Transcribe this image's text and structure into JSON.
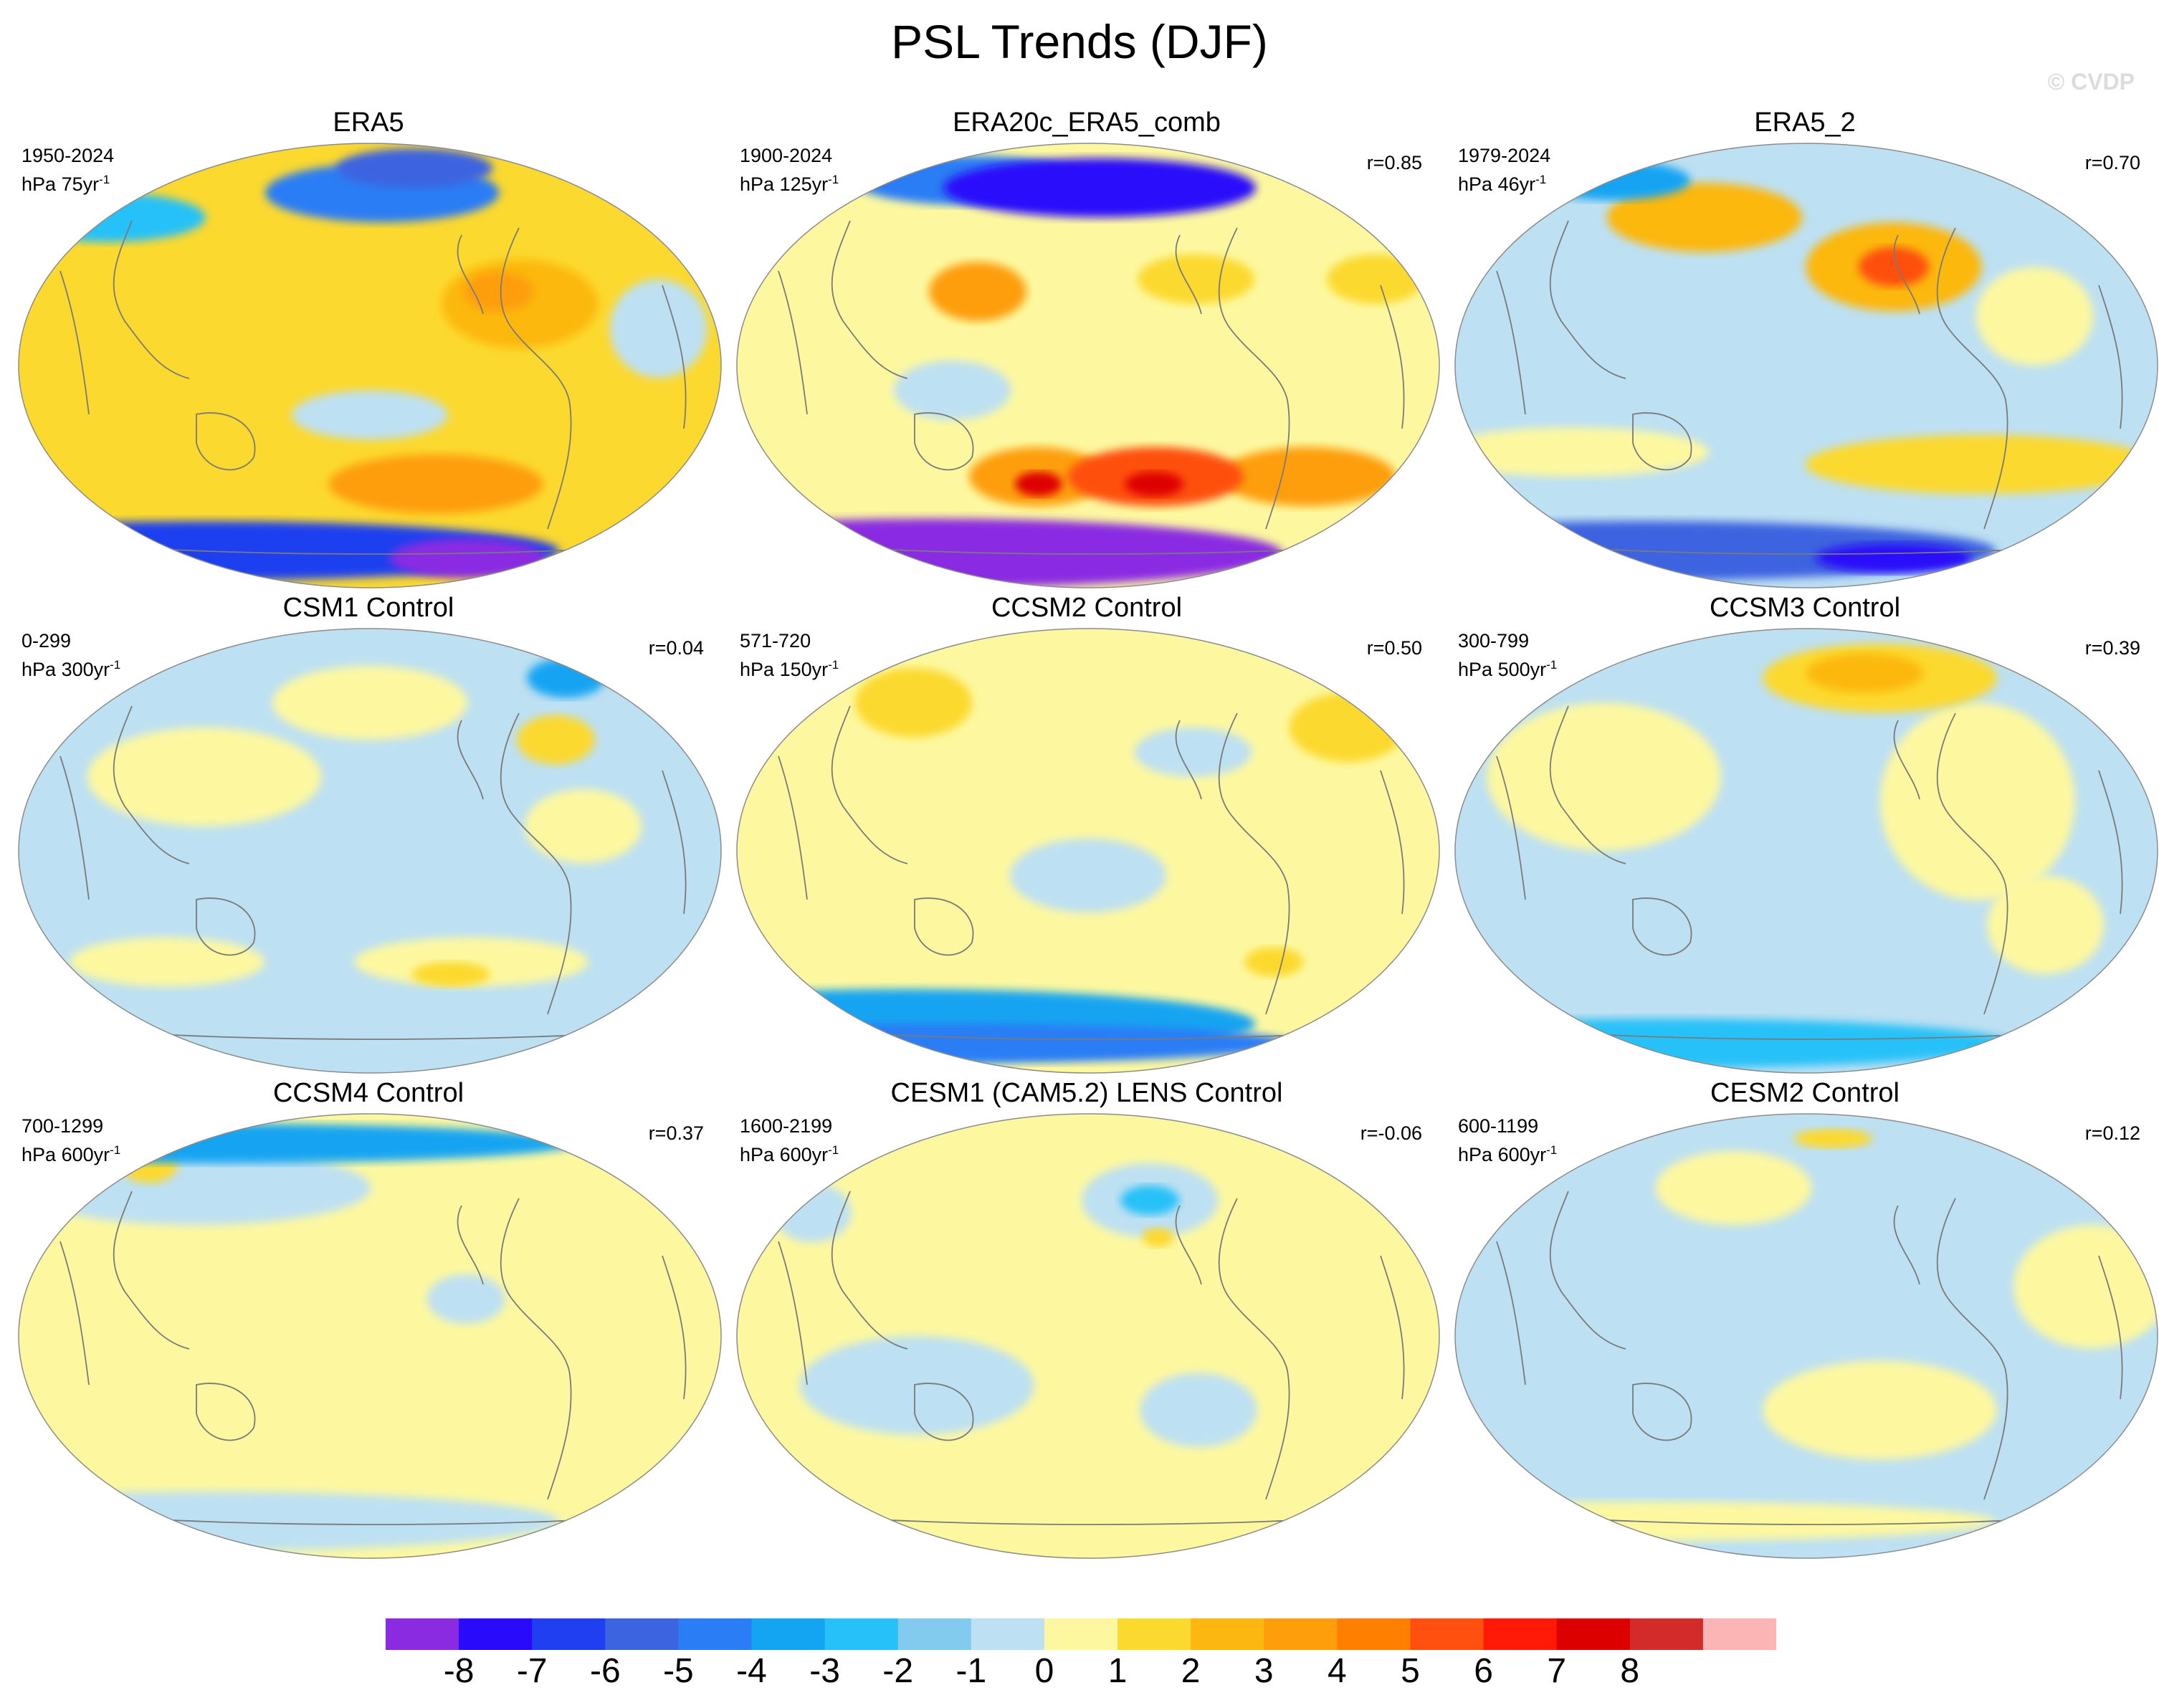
{
  "title": "PSL Trends (DJF)",
  "watermark": "© CVDP",
  "units_prefix": "hPa",
  "panels": [
    {
      "name": "ERA5",
      "period": "1950-2024",
      "per": "75yr",
      "exp": "-1",
      "corr": "",
      "base": 2,
      "blobs": [
        {
          "lon": -170,
          "lat": -48,
          "rx": 55,
          "ry": 12,
          "lvl": 4
        },
        {
          "lon": 20,
          "lat": -50,
          "rx": 30,
          "ry": 10,
          "lvl": 2
        },
        {
          "lon": -60,
          "lat": -45,
          "rx": 40,
          "ry": 12,
          "lvl": 2
        },
        {
          "lon": -130,
          "lat": 25,
          "rx": 40,
          "ry": 18,
          "lvl": 3
        },
        {
          "lon": -140,
          "lat": 30,
          "rx": 18,
          "ry": 8,
          "lvl": 4
        },
        {
          "lon": 80,
          "lat": 35,
          "rx": 50,
          "ry": 18,
          "lvl": 2
        },
        {
          "lon": 160,
          "lat": 70,
          "rx": 60,
          "ry": 12,
          "lvl": -4
        },
        {
          "lon": -160,
          "lat": 80,
          "rx": 40,
          "ry": 8,
          "lvl": -5
        },
        {
          "lon": -60,
          "lat": 15,
          "rx": 25,
          "ry": 20,
          "lvl": -1
        },
        {
          "lon": 150,
          "lat": -20,
          "rx": 40,
          "ry": 10,
          "lvl": -1
        },
        {
          "lon": 0,
          "lat": -75,
          "rx": 180,
          "ry": 12,
          "lvl": -6
        },
        {
          "lon": -110,
          "lat": -78,
          "rx": 40,
          "ry": 8,
          "lvl": -8
        },
        {
          "lon": -30,
          "lat": 60,
          "rx": 50,
          "ry": 10,
          "lvl": -2
        }
      ]
    },
    {
      "name": "ERA20c_ERA5_comb",
      "period": "1900-2024",
      "per": "125yr",
      "exp": "-1",
      "corr": "r=0.85",
      "base": 1,
      "blobs": [
        {
          "lon": -170,
          "lat": -45,
          "rx": 45,
          "ry": 12,
          "lvl": 5
        },
        {
          "lon": -80,
          "lat": -45,
          "rx": 45,
          "ry": 12,
          "lvl": 4
        },
        {
          "lon": 120,
          "lat": -45,
          "rx": 35,
          "ry": 12,
          "lvl": 4
        },
        {
          "lon": -170,
          "lat": -48,
          "rx": 15,
          "ry": 5,
          "lvl": 7
        },
        {
          "lon": 120,
          "lat": -48,
          "rx": 12,
          "ry": 5,
          "lvl": 7
        },
        {
          "lon": -150,
          "lat": 35,
          "rx": 30,
          "ry": 10,
          "lvl": 2
        },
        {
          "lon": -50,
          "lat": 35,
          "rx": 25,
          "ry": 10,
          "lvl": 2
        },
        {
          "lon": 160,
          "lat": 72,
          "rx": 80,
          "ry": 12,
          "lvl": -7
        },
        {
          "lon": 40,
          "lat": 75,
          "rx": 60,
          "ry": 10,
          "lvl": -4
        },
        {
          "lon": 90,
          "lat": 30,
          "rx": 25,
          "ry": 12,
          "lvl": 4
        },
        {
          "lon": 0,
          "lat": -76,
          "rx": 180,
          "ry": 14,
          "lvl": -8
        },
        {
          "lon": 80,
          "lat": -10,
          "rx": 30,
          "ry": 12,
          "lvl": -1
        }
      ]
    },
    {
      "name": "ERA5_2",
      "period": "1979-2024",
      "per": "46yr",
      "exp": "-1",
      "corr": "r=0.70",
      "base": -1,
      "blobs": [
        {
          "lon": -160,
          "lat": 40,
          "rx": 45,
          "ry": 18,
          "lvl": 3
        },
        {
          "lon": -160,
          "lat": 40,
          "rx": 18,
          "ry": 8,
          "lvl": 5
        },
        {
          "lon": 80,
          "lat": 60,
          "rx": 50,
          "ry": 14,
          "lvl": 3
        },
        {
          "lon": -90,
          "lat": 20,
          "rx": 30,
          "ry": 20,
          "lvl": 1
        },
        {
          "lon": -110,
          "lat": -40,
          "rx": 90,
          "ry": 12,
          "lvl": 2
        },
        {
          "lon": 20,
          "lat": -35,
          "rx": 70,
          "ry": 10,
          "lvl": 1
        },
        {
          "lon": 0,
          "lat": -75,
          "rx": 180,
          "ry": 12,
          "lvl": -5
        },
        {
          "lon": -30,
          "lat": 75,
          "rx": 40,
          "ry": 8,
          "lvl": -3
        },
        {
          "lon": -120,
          "lat": -78,
          "rx": 40,
          "ry": 6,
          "lvl": -7
        }
      ]
    },
    {
      "name": "CSM1 Control",
      "period": "0-299",
      "per": "300yr",
      "exp": "-1",
      "corr": "r=0.04",
      "base": -1,
      "blobs": [
        {
          "lon": 150,
          "lat": 60,
          "rx": 50,
          "ry": 15,
          "lvl": 1
        },
        {
          "lon": -100,
          "lat": 45,
          "rx": 20,
          "ry": 10,
          "lvl": 2
        },
        {
          "lon": -50,
          "lat": 70,
          "rx": 20,
          "ry": 8,
          "lvl": -3
        },
        {
          "lon": -150,
          "lat": -45,
          "rx": 60,
          "ry": 10,
          "lvl": 1
        },
        {
          "lon": -160,
          "lat": -50,
          "rx": 20,
          "ry": 5,
          "lvl": 2
        },
        {
          "lon": 30,
          "lat": -45,
          "rx": 50,
          "ry": 10,
          "lvl": 1
        },
        {
          "lon": 60,
          "lat": 30,
          "rx": 60,
          "ry": 20,
          "lvl": 1
        },
        {
          "lon": -100,
          "lat": 10,
          "rx": 30,
          "ry": 15,
          "lvl": 1
        }
      ]
    },
    {
      "name": "CCSM2 Control",
      "period": "571-720",
      "per": "150yr",
      "exp": "-1",
      "corr": "r=0.50",
      "base": 1,
      "blobs": [
        {
          "lon": -50,
          "lat": 50,
          "rx": 30,
          "ry": 14,
          "lvl": 2
        },
        {
          "lon": 30,
          "lat": 60,
          "rx": 30,
          "ry": 14,
          "lvl": 2
        },
        {
          "lon": -100,
          "lat": -45,
          "rx": 15,
          "ry": 6,
          "lvl": 2
        },
        {
          "lon": 0,
          "lat": -70,
          "rx": 180,
          "ry": 14,
          "lvl": -3
        },
        {
          "lon": 0,
          "lat": -78,
          "rx": 180,
          "ry": 8,
          "lvl": -4
        },
        {
          "lon": -150,
          "lat": 40,
          "rx": 30,
          "ry": 10,
          "lvl": -1
        },
        {
          "lon": 150,
          "lat": -10,
          "rx": 40,
          "ry": 15,
          "lvl": -1
        }
      ]
    },
    {
      "name": "CCSM3 Control",
      "period": "300-799",
      "per": "500yr",
      "exp": "-1",
      "corr": "r=0.39",
      "base": -1,
      "blobs": [
        {
          "lon": -150,
          "lat": 70,
          "rx": 60,
          "ry": 14,
          "lvl": 2
        },
        {
          "lon": -160,
          "lat": 72,
          "rx": 30,
          "ry": 8,
          "lvl": 3
        },
        {
          "lon": -120,
          "lat": 20,
          "rx": 50,
          "ry": 40,
          "lvl": 1
        },
        {
          "lon": 40,
          "lat": 30,
          "rx": 60,
          "ry": 30,
          "lvl": 1
        },
        {
          "lon": 0,
          "lat": -78,
          "rx": 180,
          "ry": 10,
          "lvl": -2
        },
        {
          "lon": -80,
          "lat": -30,
          "rx": 30,
          "ry": 20,
          "lvl": 1
        }
      ]
    },
    {
      "name": "CCSM4 Control",
      "period": "700-1299",
      "per": "600yr",
      "exp": "-1",
      "corr": "r=0.37",
      "base": 1,
      "blobs": [
        {
          "lon": 0,
          "lat": 78,
          "rx": 180,
          "ry": 8,
          "lvl": -3
        },
        {
          "lon": 30,
          "lat": 60,
          "rx": 90,
          "ry": 15,
          "lvl": -1
        },
        {
          "lon": -160,
          "lat": 15,
          "rx": 20,
          "ry": 10,
          "lvl": -1
        },
        {
          "lon": 0,
          "lat": -75,
          "rx": 180,
          "ry": 12,
          "lvl": -1
        },
        {
          "lon": -30,
          "lat": 70,
          "rx": 15,
          "ry": 8,
          "lvl": 2
        }
      ]
    },
    {
      "name": "CESM1 (CAM5.2) LENS Control",
      "period": "1600-2199",
      "per": "600yr",
      "exp": "-1",
      "corr": "r=-0.06",
      "base": 1,
      "blobs": [
        {
          "lon": -170,
          "lat": 55,
          "rx": 35,
          "ry": 15,
          "lvl": -1
        },
        {
          "lon": -170,
          "lat": 55,
          "rx": 15,
          "ry": 6,
          "lvl": -2
        },
        {
          "lon": -20,
          "lat": 50,
          "rx": 20,
          "ry": 12,
          "lvl": -1
        },
        {
          "lon": 60,
          "lat": -20,
          "rx": 60,
          "ry": 20,
          "lvl": -1
        },
        {
          "lon": -150,
          "lat": -30,
          "rx": 30,
          "ry": 15,
          "lvl": -1
        },
        {
          "lon": -170,
          "lat": 40,
          "rx": 8,
          "ry": 4,
          "lvl": 2
        }
      ]
    },
    {
      "name": "CESM2 Control",
      "period": "600-1199",
      "per": "600yr",
      "exp": "-1",
      "corr": "r=0.12",
      "base": -1,
      "blobs": [
        {
          "lon": -170,
          "lat": -30,
          "rx": 60,
          "ry": 20,
          "lvl": 1
        },
        {
          "lon": 0,
          "lat": -75,
          "rx": 180,
          "ry": 8,
          "lvl": 1
        },
        {
          "lon": -60,
          "lat": 20,
          "rx": 40,
          "ry": 25,
          "lvl": 1
        },
        {
          "lon": 100,
          "lat": 60,
          "rx": 40,
          "ry": 15,
          "lvl": 1
        },
        {
          "lon": 180,
          "lat": 80,
          "rx": 20,
          "ry": 4,
          "lvl": 2
        }
      ]
    }
  ],
  "colorbar": {
    "colors": [
      "#8a2be2",
      "#2a0afa",
      "#1f3ff0",
      "#3d64e0",
      "#2a7df5",
      "#13a4f2",
      "#25c1f8",
      "#82cbee",
      "#bde0f2",
      "#fdf8a0",
      "#fcd92f",
      "#fcb811",
      "#fe9e0a",
      "#ff8000",
      "#ff5010",
      "#fe1a06",
      "#dd0000",
      "#d32a2a",
      "#fbb5b5"
    ],
    "labels": [
      "-8",
      "-7",
      "-6",
      "-5",
      "-4",
      "-3",
      "-2",
      "-1",
      "0",
      "1",
      "2",
      "3",
      "4",
      "5",
      "6",
      "7",
      "8"
    ]
  }
}
